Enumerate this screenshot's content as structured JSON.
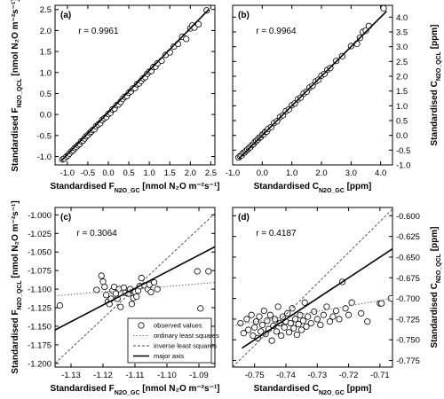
{
  "colors": {
    "axis": "#000000",
    "marker_fill": "#ffffff",
    "ols": "#777777",
    "ils": "#444444",
    "ma": "#000000",
    "background": "#ffffff"
  },
  "chart_data": [
    {
      "type": "scatter",
      "panel": "(a)",
      "annotation": "r = 0.9961",
      "xlabel": {
        "prefix": "Standardised F",
        "sub": "N2O_GC",
        "suffix": " [nmol N₂O m⁻²s⁻¹]"
      },
      "ylabel": {
        "prefix": "Standardised F",
        "sub": "N2O_QCL",
        "suffix": " [nmol N₂O m⁻²s⁻¹]"
      },
      "xlim": [
        -1.3,
        2.6
      ],
      "ylim": [
        -1.2,
        2.6
      ],
      "xticks": [
        -1.0,
        -0.5,
        0.0,
        0.5,
        1.0,
        1.5,
        2.0,
        2.5
      ],
      "xticklabels": [
        "-1.0",
        "-0.5",
        "0.0",
        "0.5",
        "1.0",
        "1.5",
        "2.0",
        "2.5"
      ],
      "yticks": [
        -1.0,
        -0.5,
        0.0,
        0.5,
        1.0,
        1.5,
        2.0,
        2.5
      ],
      "yticklabels": [
        "-1.0",
        "-0.5",
        "0.0",
        "0.5",
        "1.0",
        "1.5",
        "2.0",
        "2.5"
      ],
      "yaxis_side": "left",
      "grid": false,
      "points": {
        "x": [
          -1.12,
          -1.08,
          -1.02,
          -0.98,
          -0.95,
          -0.9,
          -0.86,
          -0.82,
          -0.78,
          -0.74,
          -0.7,
          -0.66,
          -0.62,
          -0.58,
          -0.54,
          -0.5,
          -0.45,
          -0.42,
          -0.38,
          -0.34,
          -0.3,
          -0.25,
          -0.2,
          -0.15,
          -0.1,
          -0.05,
          0.0,
          0.05,
          0.1,
          0.15,
          0.2,
          0.25,
          0.3,
          0.35,
          0.4,
          0.45,
          0.5,
          0.55,
          0.6,
          0.65,
          0.7,
          0.75,
          0.8,
          0.85,
          0.9,
          0.95,
          1.0,
          1.05,
          1.1,
          1.15,
          1.2,
          1.3,
          1.4,
          1.5,
          1.6,
          1.7,
          1.8,
          1.9,
          2.0,
          2.05,
          2.1,
          2.2,
          2.4
        ],
        "y": [
          -1.07,
          -1.05,
          -1.0,
          -0.97,
          -0.93,
          -0.88,
          -0.85,
          -0.8,
          -0.77,
          -0.73,
          -0.7,
          -0.64,
          -0.62,
          -0.57,
          -0.52,
          -0.49,
          -0.44,
          -0.41,
          -0.37,
          -0.35,
          -0.28,
          -0.24,
          -0.21,
          -0.13,
          -0.09,
          -0.06,
          0.01,
          0.04,
          0.12,
          0.14,
          0.22,
          0.24,
          0.3,
          0.37,
          0.42,
          0.44,
          0.52,
          0.55,
          0.62,
          0.63,
          0.72,
          0.74,
          0.8,
          0.86,
          0.89,
          0.97,
          1.02,
          1.04,
          1.13,
          1.14,
          1.22,
          1.28,
          1.42,
          1.48,
          1.62,
          1.68,
          1.85,
          1.8,
          2.05,
          2.12,
          2.07,
          2.15,
          2.48
        ]
      },
      "lines": [
        {
          "name": "major axis",
          "x": [
            -1.15,
            2.45
          ],
          "y": [
            -1.1,
            2.5
          ],
          "style": "solid",
          "width": 1.6
        }
      ]
    },
    {
      "type": "scatter",
      "panel": "(b)",
      "annotation": "r = 0.9964",
      "xlabel": {
        "prefix": "Standardised C",
        "sub": "N2O_GC",
        "suffix": " [ppm]"
      },
      "ylabel": {
        "prefix": "Standardised C",
        "sub": "N2O_QCL",
        "suffix": " [ppm]"
      },
      "xlim": [
        -1.0,
        4.4
      ],
      "ylim": [
        -1.0,
        4.4
      ],
      "xticks": [
        -1.0,
        0.0,
        1.0,
        2.0,
        3.0,
        4.0
      ],
      "xticklabels": [
        "-1.0",
        "0.0",
        "1.0",
        "2.0",
        "3.0",
        "4.0"
      ],
      "yticks": [
        -1.0,
        -0.5,
        0.0,
        0.5,
        1.0,
        1.5,
        2.0,
        2.5,
        3.0,
        3.5,
        4.0
      ],
      "yticklabels": [
        "-1.0",
        "-0.5",
        "0.0",
        "0.5",
        "1.0",
        "1.5",
        "2.0",
        "2.5",
        "3.0",
        "3.5",
        "4.0"
      ],
      "yaxis_side": "right",
      "grid": false,
      "points": {
        "x": [
          -0.8,
          -0.75,
          -0.7,
          -0.65,
          -0.6,
          -0.55,
          -0.5,
          -0.45,
          -0.4,
          -0.35,
          -0.3,
          -0.25,
          -0.2,
          -0.15,
          -0.1,
          -0.05,
          0.0,
          0.05,
          0.1,
          0.15,
          0.2,
          0.3,
          0.4,
          0.5,
          0.6,
          0.7,
          0.8,
          0.9,
          1.0,
          1.1,
          1.2,
          1.3,
          1.4,
          1.5,
          1.6,
          1.7,
          1.8,
          1.9,
          2.0,
          2.1,
          2.2,
          2.3,
          2.5,
          2.7,
          3.0,
          3.2,
          3.3,
          3.4,
          3.5,
          3.6,
          4.1
        ],
        "y": [
          -0.75,
          -0.7,
          -0.68,
          -0.6,
          -0.58,
          -0.52,
          -0.48,
          -0.43,
          -0.4,
          -0.33,
          -0.3,
          -0.22,
          -0.19,
          -0.14,
          -0.08,
          -0.05,
          0.02,
          0.04,
          0.12,
          0.13,
          0.22,
          0.28,
          0.42,
          0.48,
          0.62,
          0.68,
          0.82,
          0.88,
          1.02,
          1.08,
          1.22,
          1.28,
          1.42,
          1.48,
          1.62,
          1.68,
          1.82,
          1.88,
          2.02,
          2.08,
          2.22,
          2.28,
          2.52,
          2.68,
          3.02,
          3.1,
          3.3,
          3.5,
          3.55,
          3.7,
          4.3
        ]
      },
      "lines": [
        {
          "name": "major axis",
          "x": [
            -0.8,
            4.2
          ],
          "y": [
            -0.8,
            4.2
          ],
          "style": "solid",
          "width": 1.6
        }
      ]
    },
    {
      "type": "scatter",
      "panel": "(c)",
      "annotation": "r = 0.3064",
      "xlabel": {
        "prefix": "Standardised F",
        "sub": "N2O_GC",
        "suffix": " [nmol N₂O m⁻²s⁻¹]"
      },
      "ylabel": {
        "prefix": "Standardised F",
        "sub": "N2O_QCL",
        "suffix": " [nmol N₂O m⁻²s⁻¹]"
      },
      "xlim": [
        -1.135,
        -1.085
      ],
      "ylim": [
        -1.205,
        -0.99
      ],
      "xticks": [
        -1.13,
        -1.12,
        -1.11,
        -1.1,
        -1.09
      ],
      "xticklabels": [
        "-1.13",
        "-1.12",
        "-1.11",
        "-1.10",
        "-1.09"
      ],
      "yticks": [
        -1.2,
        -1.175,
        -1.15,
        -1.125,
        -1.1,
        -1.075,
        -1.05,
        -1.025,
        -1.0
      ],
      "yticklabels": [
        "-1.200",
        "-1.175",
        "-1.150",
        "-1.125",
        "-1.100",
        "-1.075",
        "-1.050",
        "-1.025",
        "-1.000"
      ],
      "yaxis_side": "left",
      "grid": false,
      "points": {
        "x": [
          -1.1335,
          -1.122,
          -1.1205,
          -1.12,
          -1.1195,
          -1.119,
          -1.1185,
          -1.118,
          -1.1175,
          -1.117,
          -1.1165,
          -1.116,
          -1.1155,
          -1.115,
          -1.1145,
          -1.1135,
          -1.113,
          -1.112,
          -1.1115,
          -1.111,
          -1.1105,
          -1.11,
          -1.1095,
          -1.109,
          -1.1085,
          -1.108,
          -1.107,
          -1.106,
          -1.1055,
          -1.105,
          -1.104,
          -1.103,
          -1.0905,
          -1.0895,
          -1.087
        ],
        "y": [
          -1.122,
          -1.101,
          -1.082,
          -1.09,
          -1.097,
          -1.108,
          -1.117,
          -1.12,
          -1.113,
          -1.102,
          -1.097,
          -1.106,
          -1.113,
          -1.1,
          -1.124,
          -1.098,
          -1.105,
          -1.106,
          -1.1,
          -1.12,
          -1.112,
          -1.104,
          -1.11,
          -1.102,
          -1.096,
          -1.085,
          -1.095,
          -1.1,
          -1.094,
          -1.104,
          -1.091,
          -1.1,
          -1.076,
          -1.126,
          -1.076
        ]
      },
      "lines": [
        {
          "name": "ordinary least squares",
          "x": [
            -1.135,
            -1.085
          ],
          "y": [
            -1.109,
            -1.091
          ],
          "style": "dotted",
          "width": 1.1
        },
        {
          "name": "inverse least squares",
          "x": [
            -1.135,
            -1.085
          ],
          "y": [
            -1.2,
            -0.998
          ],
          "style": "dashed",
          "width": 0.9
        },
        {
          "name": "major axis",
          "x": [
            -1.135,
            -1.085
          ],
          "y": [
            -1.155,
            -1.043
          ],
          "style": "solid",
          "width": 1.6
        }
      ],
      "legend": {
        "placement": "bottom-right",
        "entries": [
          {
            "label": "observed values",
            "kind": "marker"
          },
          {
            "label": "ordinary least squares",
            "kind": "dotted"
          },
          {
            "label": "inverse least squares",
            "kind": "dashed"
          },
          {
            "label": "major axis",
            "kind": "solid"
          }
        ]
      }
    },
    {
      "type": "scatter",
      "panel": "(d)",
      "annotation": "r = 0.4187",
      "xlabel": {
        "prefix": "Standardised C",
        "sub": "N2O_GC",
        "suffix": " [ppm]"
      },
      "ylabel": {
        "prefix": "Standardised C",
        "sub": "N2O_QCL",
        "suffix": " [ppm]"
      },
      "xlim": [
        -0.757,
        -0.706
      ],
      "ylim": [
        -0.783,
        -0.59
      ],
      "xticks": [
        -0.75,
        -0.74,
        -0.73,
        -0.72,
        -0.71
      ],
      "xticklabels": [
        "-0.75",
        "-0.74",
        "-0.73",
        "-0.72",
        "-0.71"
      ],
      "yticks": [
        -0.775,
        -0.75,
        -0.725,
        -0.7,
        -0.675,
        -0.65,
        -0.625,
        -0.6
      ],
      "yticklabels": [
        "-0.775",
        "-0.750",
        "-0.725",
        "-0.700",
        "-0.675",
        "-0.650",
        "-0.625",
        "-0.600"
      ],
      "yaxis_side": "right",
      "grid": false,
      "points": {
        "x": [
          -0.7545,
          -0.7535,
          -0.7525,
          -0.752,
          -0.751,
          -0.7505,
          -0.75,
          -0.7495,
          -0.749,
          -0.7485,
          -0.748,
          -0.7475,
          -0.747,
          -0.7465,
          -0.746,
          -0.7455,
          -0.745,
          -0.7445,
          -0.744,
          -0.7435,
          -0.743,
          -0.7425,
          -0.742,
          -0.7415,
          -0.741,
          -0.7405,
          -0.74,
          -0.7395,
          -0.739,
          -0.7385,
          -0.738,
          -0.7375,
          -0.737,
          -0.7365,
          -0.736,
          -0.7355,
          -0.735,
          -0.7345,
          -0.734,
          -0.7335,
          -0.733,
          -0.732,
          -0.731,
          -0.73,
          -0.729,
          -0.728,
          -0.727,
          -0.726,
          -0.725,
          -0.724,
          -0.723,
          -0.722,
          -0.721,
          -0.72,
          -0.719,
          -0.716,
          -0.714,
          -0.71,
          -0.7095,
          -0.7065
        ],
        "y": [
          -0.73,
          -0.742,
          -0.725,
          -0.738,
          -0.72,
          -0.745,
          -0.735,
          -0.728,
          -0.748,
          -0.722,
          -0.74,
          -0.732,
          -0.715,
          -0.743,
          -0.727,
          -0.737,
          -0.72,
          -0.751,
          -0.733,
          -0.725,
          -0.74,
          -0.71,
          -0.73,
          -0.745,
          -0.722,
          -0.735,
          -0.728,
          -0.718,
          -0.741,
          -0.73,
          -0.712,
          -0.736,
          -0.725,
          -0.744,
          -0.731,
          -0.72,
          -0.738,
          -0.727,
          -0.705,
          -0.734,
          -0.722,
          -0.73,
          -0.716,
          -0.725,
          -0.732,
          -0.72,
          -0.71,
          -0.728,
          -0.722,
          -0.715,
          -0.725,
          -0.68,
          -0.712,
          -0.72,
          -0.705,
          -0.718,
          -0.728,
          -0.706,
          -0.706,
          -0.7
        ]
      },
      "lines": [
        {
          "name": "ordinary least squares",
          "x": [
            -0.757,
            -0.706
          ],
          "y": [
            -0.733,
            -0.7
          ],
          "style": "dotted",
          "width": 1.1
        },
        {
          "name": "inverse least squares",
          "x": [
            -0.757,
            -0.706
          ],
          "y": [
            -0.783,
            -0.592
          ],
          "style": "dashed",
          "width": 0.9
        },
        {
          "name": "major axis",
          "x": [
            -0.754,
            -0.706
          ],
          "y": [
            -0.76,
            -0.64
          ],
          "style": "solid",
          "width": 1.6
        }
      ]
    }
  ]
}
